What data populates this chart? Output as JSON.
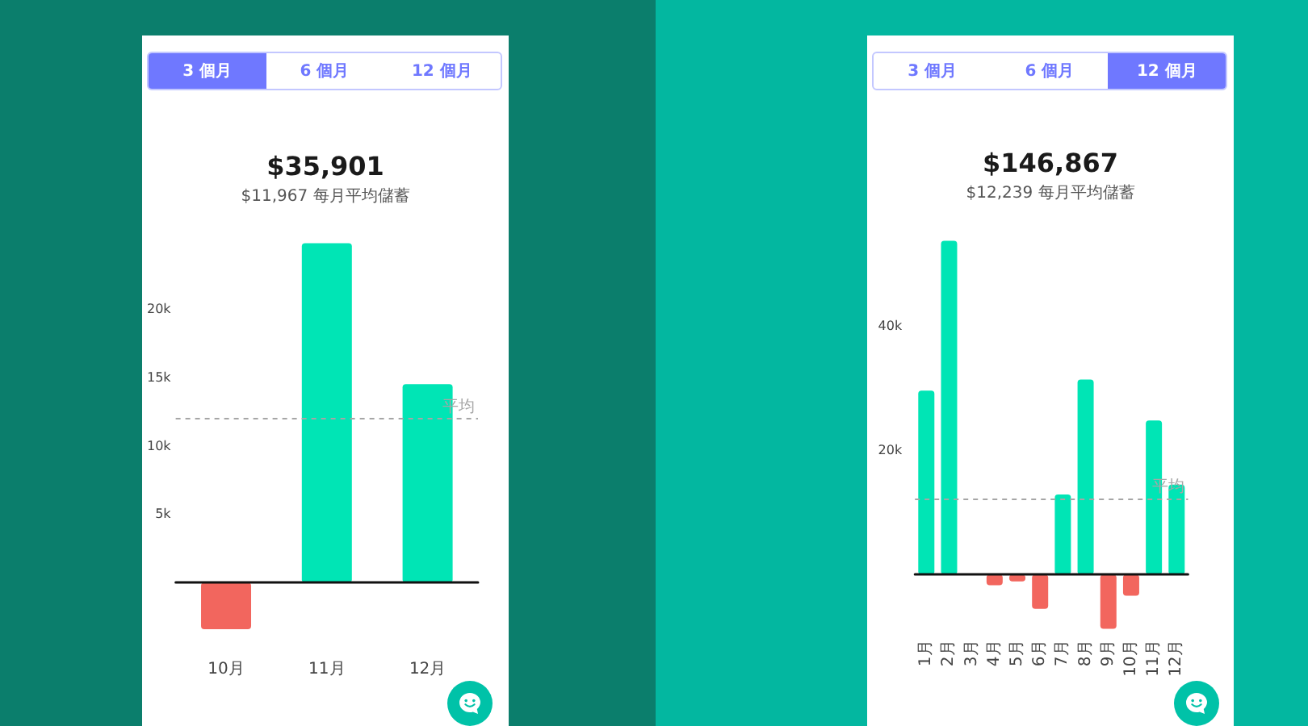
{
  "chart_data": [
    {
      "type": "bar",
      "title": "$35,901",
      "subtitle": "$11,967 每月平均儲蓄",
      "annotations": [
        "3 個月",
        "6 個月",
        "12 個月"
      ],
      "categories": [
        "10月",
        "11月",
        "12月"
      ],
      "values": [
        -3400,
        24800,
        14500
      ],
      "colors": [
        "#f2665e",
        "#00e5b5",
        "#00e5b5"
      ],
      "ylim": [
        -3400,
        24800
      ],
      "yticks": [
        {
          "value": 5000,
          "label": "5k"
        },
        {
          "value": 10000,
          "label": "10k"
        },
        {
          "value": 15000,
          "label": "15k"
        },
        {
          "value": 20000,
          "label": "20k"
        }
      ],
      "ref_lines": [
        {
          "axis": "y",
          "value": 11967,
          "label": "平均",
          "color": "#a6a6a6",
          "line_style": "dashed"
        }
      ]
    },
    {
      "type": "bar",
      "title": "$146,867",
      "subtitle": "$12,239 每月平均儲蓄",
      "annotations": [
        "3 個月",
        "6 個月",
        "12 個月"
      ],
      "categories": [
        "1月",
        "2月",
        "3月",
        "4月",
        "5月",
        "6月",
        "7月",
        "8月",
        "9月",
        "10月",
        "11月",
        "12月"
      ],
      "values": [
        29600,
        53700,
        0,
        -1700,
        -1100,
        -5500,
        12900,
        31400,
        -8700,
        -3400,
        24800,
        14500
      ],
      "colors": [
        "#00e5b5",
        "#00e5b5",
        "#00e5b5",
        "#f2665e",
        "#f2665e",
        "#f2665e",
        "#00e5b5",
        "#00e5b5",
        "#f2665e",
        "#f2665e",
        "#00e5b5",
        "#00e5b5"
      ],
      "ylim": [
        -8700,
        53700
      ],
      "yticks": [
        {
          "value": 20000,
          "label": "20k"
        },
        {
          "value": 40000,
          "label": "40k"
        }
      ],
      "ref_lines": [
        {
          "axis": "y",
          "value": 12239,
          "label": "平均",
          "color": "#a6a6a6",
          "line_style": "dashed"
        }
      ]
    }
  ]
}
